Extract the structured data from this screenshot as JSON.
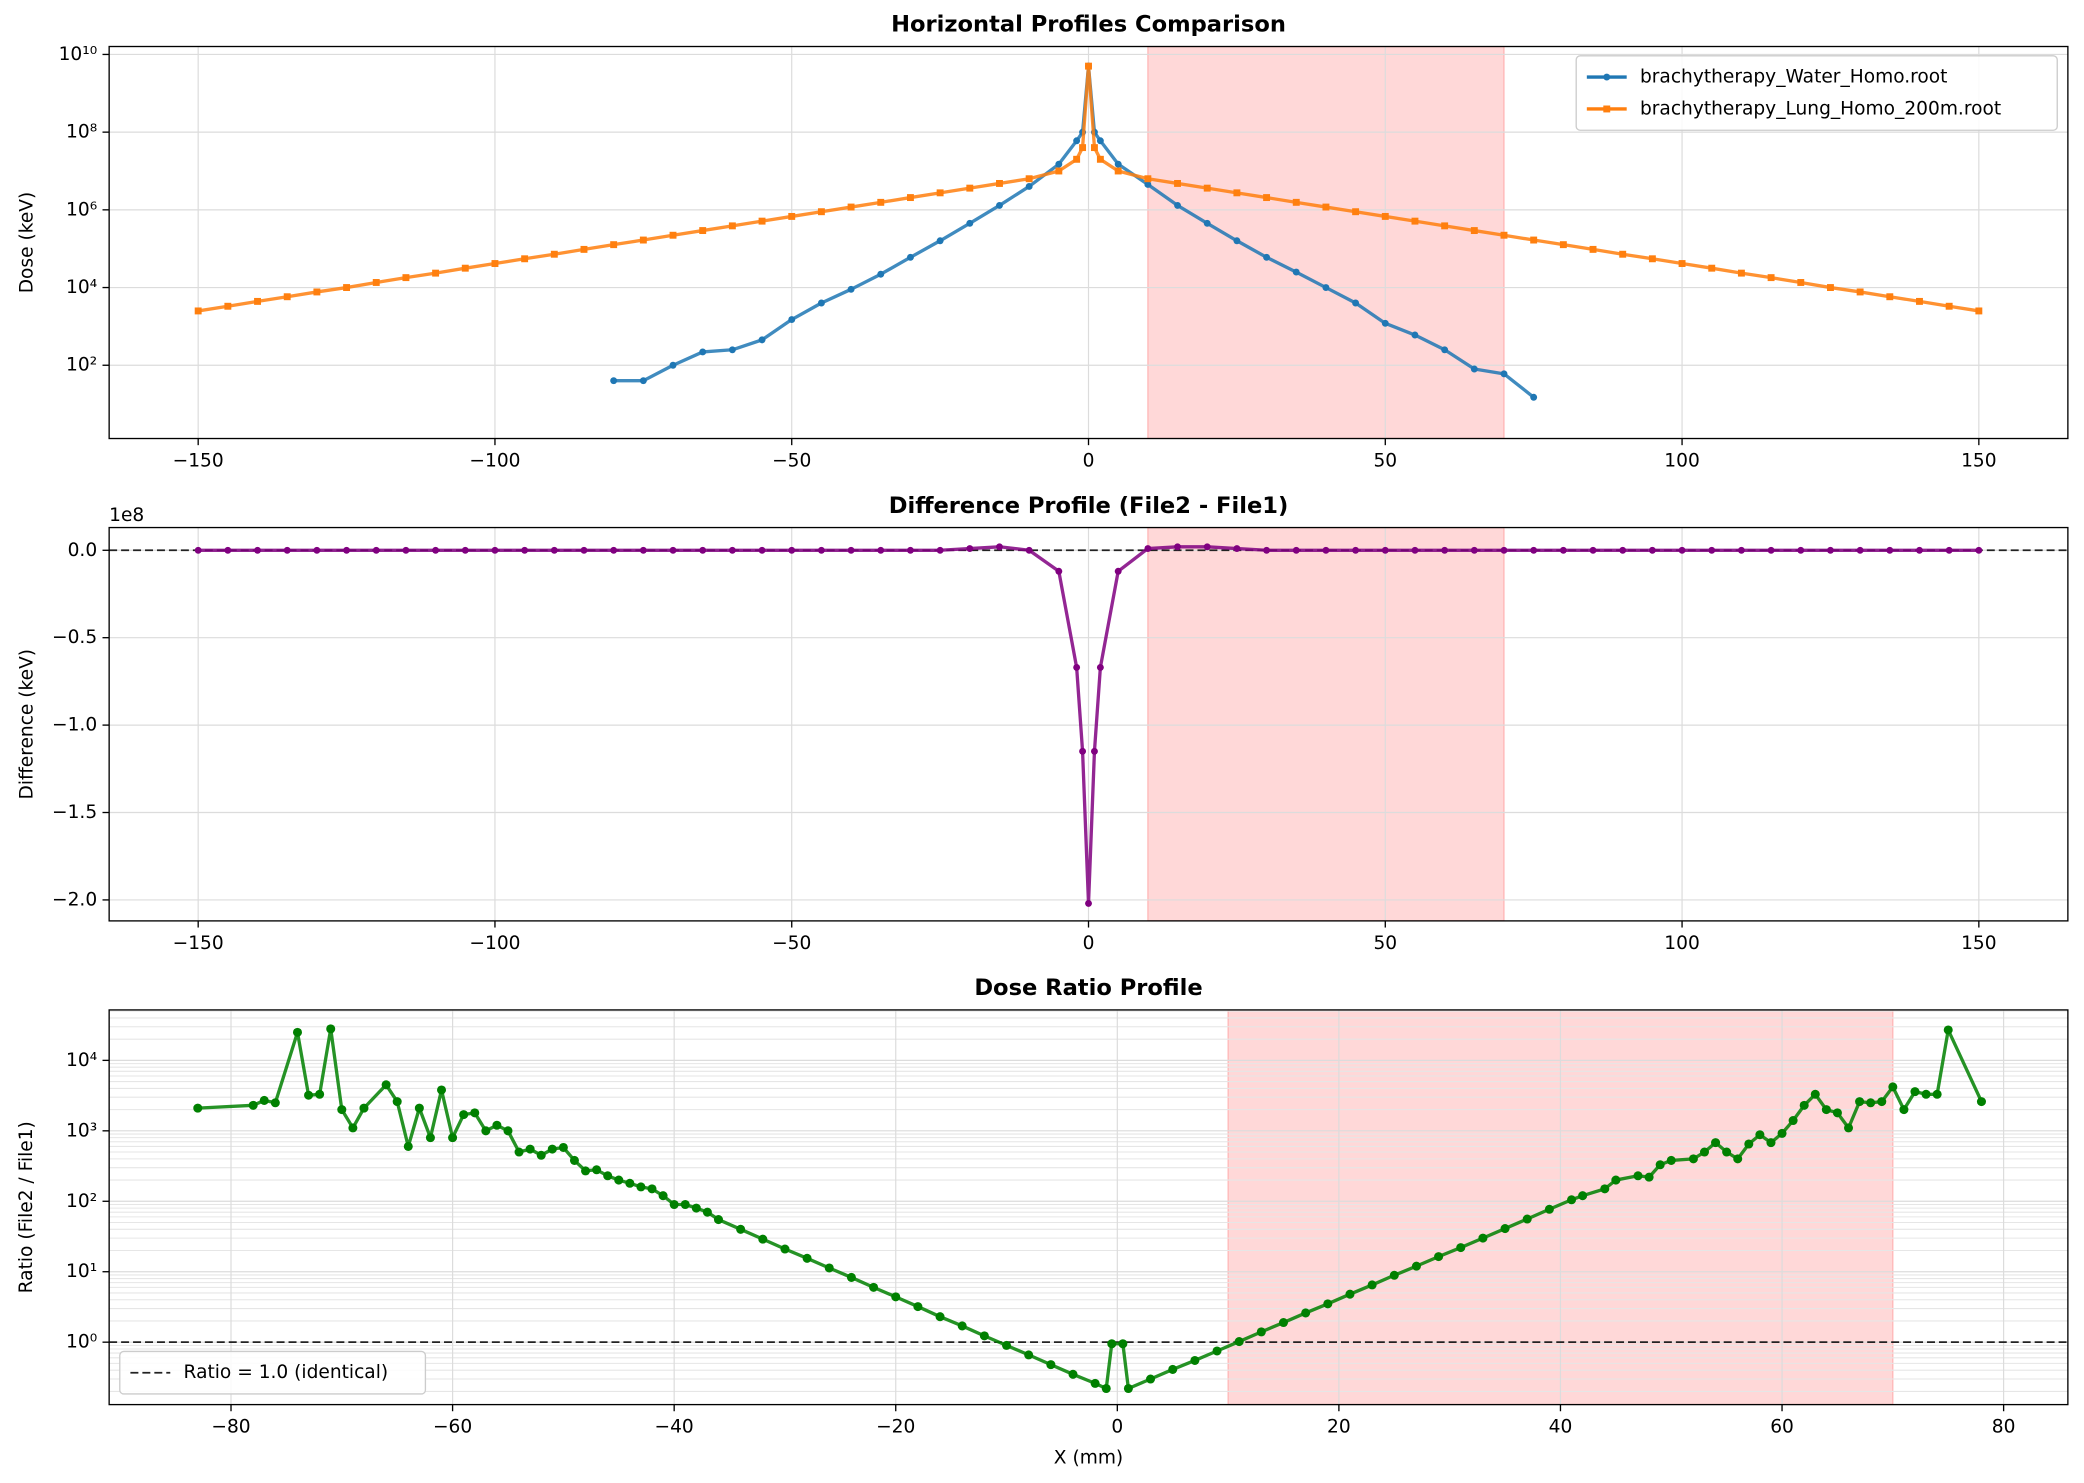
{
  "chart_data": [
    {
      "type": "line",
      "title": "Horizontal Profiles Comparison",
      "y_label": "Dose (keV)",
      "log_y": true,
      "grid": true,
      "legend": "upper right",
      "x": [
        -150,
        -145,
        -140,
        -135,
        -130,
        -125,
        -120,
        -115,
        -110,
        -105,
        -100,
        -95,
        -90,
        -85,
        -80,
        -75,
        -70,
        -65,
        -60,
        -55,
        -50,
        -45,
        -40,
        -35,
        -30,
        -25,
        -20,
        -15,
        -10,
        -5,
        -2,
        -1,
        0,
        1,
        2,
        5,
        10,
        15,
        20,
        25,
        30,
        35,
        40,
        45,
        50,
        55,
        60,
        65,
        70,
        75,
        80,
        85,
        90,
        95,
        100,
        105,
        110,
        115,
        120,
        125,
        130,
        135,
        140,
        145,
        150
      ],
      "series": [
        {
          "name": "brachytherapy_Water_Homo.root",
          "color": "#1f77b4",
          "marker": "circle",
          "values": [
            null,
            null,
            null,
            null,
            null,
            null,
            null,
            null,
            null,
            null,
            null,
            null,
            null,
            null,
            40,
            40,
            100,
            220,
            250,
            450,
            1500,
            4000,
            9000,
            22000,
            60000,
            160000,
            450000,
            1300000,
            4000000,
            15000000,
            60000000,
            100000000,
            5000000000,
            100000000,
            60000000,
            15000000,
            4500000,
            1300000,
            450000,
            160000,
            60000,
            25000,
            10000,
            4000,
            1200,
            600,
            250,
            80,
            60,
            15,
            null,
            null,
            null,
            null,
            null,
            null,
            null,
            null,
            null,
            null,
            null,
            null,
            null,
            null,
            null
          ]
        },
        {
          "name": "brachytherapy_Lung_Homo_200m.root",
          "color": "#ff7f0e",
          "marker": "square",
          "values": [
            2500,
            3300,
            4400,
            5800,
            7700,
            10000,
            13500,
            18000,
            23500,
            31500,
            41500,
            55000,
            72000,
            96000,
            127000,
            167000,
            222000,
            293000,
            387000,
            512000,
            677000,
            895000,
            1180000,
            1560000,
            2070000,
            2740000,
            3620000,
            4780000,
            6320000,
            10000000,
            20000000,
            40000000,
            5000000000,
            40000000,
            20000000,
            10000000,
            6320000,
            4780000,
            3620000,
            2740000,
            2070000,
            1560000,
            1180000,
            895000,
            677000,
            512000,
            387000,
            293000,
            222000,
            167000,
            127000,
            96000,
            72000,
            55000,
            41500,
            31500,
            23500,
            18000,
            13500,
            10000,
            7700,
            5800,
            4400,
            3300,
            2500
          ]
        }
      ],
      "shaded_region": [
        10,
        70
      ],
      "shaded_color": "#ff9999",
      "xlim": [
        -165,
        165
      ],
      "xticks": [
        {
          "value": -150,
          "label": "−150"
        },
        {
          "value": -100,
          "label": "−100"
        },
        {
          "value": -50,
          "label": "−50"
        },
        0,
        50,
        100,
        150
      ],
      "ylim": [
        1.3,
        16000000000
      ],
      "yticks": [
        {
          "value": 100,
          "label": "10²"
        },
        {
          "value": 10000,
          "label": "10⁴"
        },
        {
          "value": 1000000,
          "label": "10⁶"
        },
        {
          "value": 100000000,
          "label": "10⁸"
        },
        {
          "value": 10000000000,
          "label": "10¹⁰"
        }
      ]
    },
    {
      "type": "line",
      "title": "Difference Profile (File2 - File1)",
      "y_label": "Difference (keV)",
      "offset_text": "1e8",
      "log_y": false,
      "grid": true,
      "x": [
        -150,
        -145,
        -140,
        -135,
        -130,
        -125,
        -120,
        -115,
        -110,
        -105,
        -100,
        -95,
        -90,
        -85,
        -80,
        -75,
        -70,
        -65,
        -60,
        -55,
        -50,
        -45,
        -40,
        -35,
        -30,
        -25,
        -20,
        -15,
        -10,
        -5,
        -2,
        -1,
        0,
        1,
        2,
        5,
        10,
        15,
        20,
        25,
        30,
        35,
        40,
        45,
        50,
        55,
        60,
        65,
        70,
        75,
        80,
        85,
        90,
        95,
        100,
        105,
        110,
        115,
        120,
        125,
        130,
        135,
        140,
        145,
        150
      ],
      "series": [
        {
          "color": "#800080",
          "marker": "circle",
          "values": [
            0,
            0,
            0,
            0,
            0,
            0,
            0,
            0,
            0,
            0,
            0,
            0,
            0,
            0,
            0,
            0,
            0,
            0,
            0,
            0,
            0,
            0,
            0,
            0,
            0,
            0,
            0.01,
            0.02,
            0.0,
            -0.12,
            -0.67,
            -1.15,
            -2.02,
            -1.15,
            -0.67,
            -0.12,
            0.01,
            0.02,
            0.02,
            0.01,
            0,
            0,
            0,
            0,
            0,
            0,
            0,
            0,
            0,
            0,
            0,
            0,
            0,
            0,
            0,
            0,
            0,
            0,
            0,
            0,
            0,
            0,
            0,
            0,
            0
          ]
        }
      ],
      "reference_line": 0,
      "shaded_region": [
        10,
        70
      ],
      "shaded_color": "#ff9999",
      "xlim": [
        -165,
        165
      ],
      "xticks": [
        {
          "value": -150,
          "label": "−150"
        },
        {
          "value": -100,
          "label": "−100"
        },
        {
          "value": -50,
          "label": "−50"
        },
        0,
        50,
        100,
        150
      ],
      "ylim": [
        -2.12,
        0.13
      ],
      "yticks": [
        {
          "value": 0,
          "label": "0.0"
        },
        {
          "value": -0.5,
          "label": "−0.5"
        },
        {
          "value": -1,
          "label": "−1.0"
        },
        {
          "value": -1.5,
          "label": "−1.5"
        },
        {
          "value": -2,
          "label": "−2.0"
        }
      ]
    },
    {
      "type": "line",
      "title": "Dose Ratio Profile",
      "x_label": "X (mm)",
      "y_label": "Ratio (File2 / File1)",
      "log_y": true,
      "grid": true,
      "minor_grid": true,
      "legend": "lower left",
      "x": [
        -83,
        -78,
        -77,
        -76,
        -74,
        -73,
        -72,
        -71,
        -70,
        -69,
        -68,
        -66,
        -65,
        -64,
        -63,
        -62,
        -61,
        -60,
        -59,
        -58,
        -57,
        -56,
        -55,
        -54,
        -53,
        -52,
        -51,
        -50,
        -49,
        -48,
        -47,
        -46,
        -45,
        -44,
        -43,
        -42,
        -41,
        -40,
        -39,
        -38,
        -37,
        -36,
        -34,
        -32,
        -30,
        -28,
        -26,
        -24,
        -22,
        -20,
        -18,
        -16,
        -14,
        -12,
        -10,
        -8,
        -6,
        -4,
        -2,
        -1,
        -0.5,
        0.5,
        1,
        3,
        5,
        7,
        9,
        11,
        13,
        15,
        17,
        19,
        21,
        23,
        25,
        27,
        29,
        31,
        33,
        35,
        37,
        39,
        41,
        42,
        44,
        45,
        47,
        48,
        49,
        50,
        52,
        53,
        54,
        55,
        56,
        57,
        58,
        59,
        60,
        61,
        62,
        63,
        64,
        65,
        66,
        67,
        68,
        69,
        70,
        71,
        72,
        73,
        74,
        75,
        78
      ],
      "series": [
        {
          "color": "#008000",
          "marker": "circle",
          "values": [
            2100,
            2300,
            2700,
            2500,
            25000,
            3200,
            3300,
            28000,
            2000,
            1100,
            2100,
            4500,
            2600,
            600,
            2100,
            800,
            3800,
            800,
            1700,
            1800,
            1000,
            1200,
            1000,
            500,
            550,
            450,
            550,
            580,
            380,
            270,
            280,
            230,
            200,
            180,
            160,
            150,
            120,
            90,
            90,
            80,
            70,
            55,
            40,
            29,
            21,
            15.5,
            11.3,
            8.3,
            6,
            4.4,
            3.2,
            2.3,
            1.7,
            1.23,
            0.9,
            0.66,
            0.48,
            0.35,
            0.26,
            0.22,
            0.95,
            0.95,
            0.22,
            0.3,
            0.41,
            0.55,
            0.75,
            1.02,
            1.4,
            1.9,
            2.6,
            3.5,
            4.8,
            6.5,
            8.9,
            12,
            16.4,
            22,
            30,
            41,
            56,
            77,
            105,
            120,
            150,
            200,
            230,
            220,
            330,
            380,
            400,
            500,
            680,
            500,
            400,
            650,
            880,
            680,
            920,
            1400,
            2300,
            3300,
            2000,
            1800,
            1100,
            2600,
            2500,
            2600,
            4200,
            2000,
            3600,
            3300,
            3300,
            27000,
            2600
          ]
        }
      ],
      "reference_line": 1,
      "reference_label": "Ratio = 1.0 (identical)",
      "shaded_region": [
        10,
        70
      ],
      "shaded_color": "#ff9999",
      "xlim": [
        -91,
        85.8
      ],
      "xticks": [
        {
          "value": -80,
          "label": "−80"
        },
        {
          "value": -60,
          "label": "−60"
        },
        {
          "value": -40,
          "label": "−40"
        },
        {
          "value": -20,
          "label": "−20"
        },
        0,
        20,
        40,
        60,
        80
      ],
      "ylim": [
        0.13,
        52000
      ],
      "yticks": [
        {
          "value": 1,
          "label": "10⁰"
        },
        {
          "value": 10,
          "label": "10¹"
        },
        {
          "value": 100,
          "label": "10²"
        },
        {
          "value": 1000,
          "label": "10³"
        },
        {
          "value": 10000,
          "label": "10⁴"
        }
      ]
    }
  ]
}
